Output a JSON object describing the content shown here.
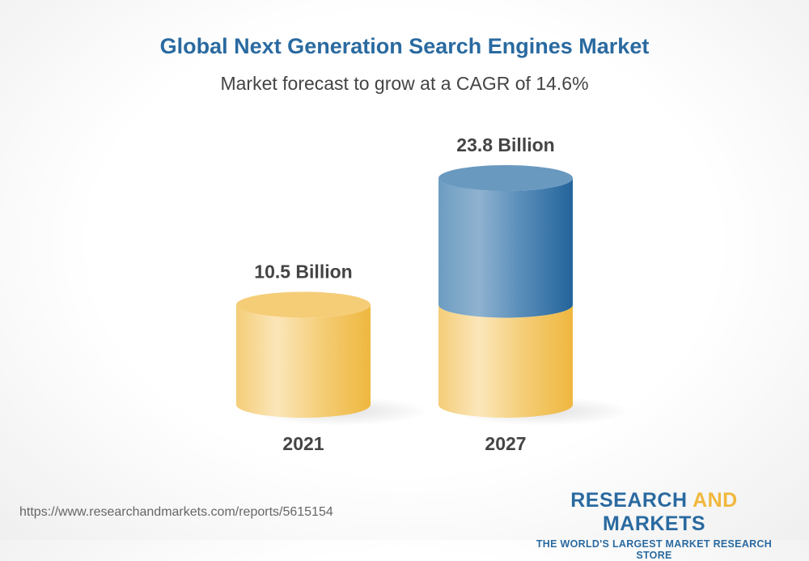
{
  "title": "Global Next Generation Search Engines Market",
  "subtitle": "Market forecast to grow at a CAGR of 14.6%",
  "chart_data": {
    "type": "bar",
    "style": "3d-cylinder",
    "title": "Global Next Generation Search Engines Market",
    "subtitle": "Market forecast to grow at a CAGR of 14.6%",
    "categories": [
      "2021",
      "2027"
    ],
    "values": [
      10.5,
      23.8
    ],
    "data_labels": [
      "10.5 Billion",
      "23.8 Billion"
    ],
    "unit": "Billion",
    "colors": {
      "base": "#f3c35a",
      "growth": "#2c6a9e"
    }
  },
  "footer": {
    "url": "https://www.researchandmarkets.com/reports/5615154",
    "logo_part1": "RESEARCH",
    "logo_part2": "AND",
    "logo_part3": "MARKETS",
    "logo_tagline": "THE WORLD'S LARGEST MARKET RESEARCH STORE"
  }
}
